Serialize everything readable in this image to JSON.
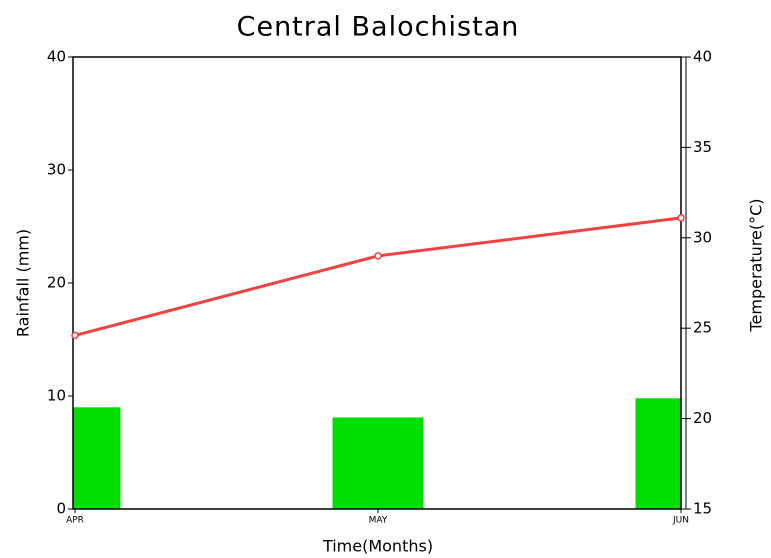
{
  "chart_data": {
    "type": "combo",
    "title": "Central Balochistan",
    "xlabel": "Time(Months)",
    "ylabel": "Rainfall (mm)",
    "y2label": "Temperature(°C)",
    "categories": [
      "APR",
      "MAY",
      "JUN"
    ],
    "series": [
      {
        "type": "bar",
        "color": "#00dd00",
        "values": [
          9.0,
          8.1,
          9.8
        ]
      },
      {
        "type": "line",
        "color": "#ee4444",
        "axis": "y2",
        "values": [
          24.6,
          29.0,
          31.1
        ]
      }
    ],
    "ylim": [
      0,
      40
    ],
    "yticks": [
      0,
      10,
      20,
      30,
      40
    ],
    "y2lim": [
      15,
      40
    ],
    "y2ticks": [
      15,
      20,
      25,
      30,
      35,
      40
    ]
  }
}
